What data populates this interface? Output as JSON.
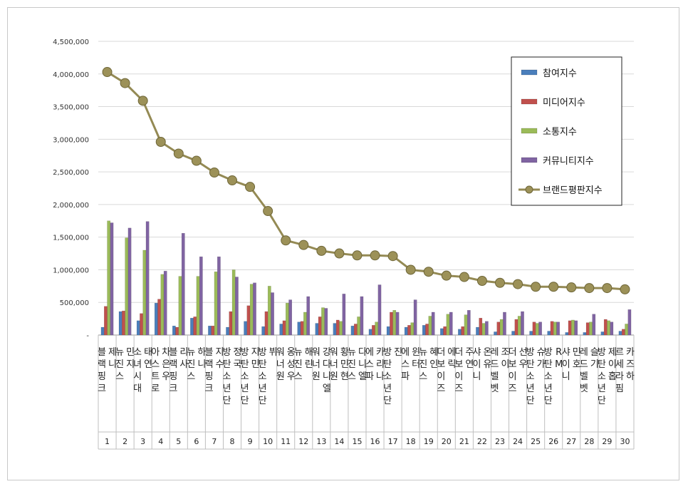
{
  "chart_data": {
    "type": "bar",
    "title": "",
    "xlabel": "",
    "ylabel": "",
    "ylim": [
      0,
      4500000
    ],
    "yticks": [
      "-",
      "500,000",
      "1,000,000",
      "1,500,000",
      "2,000,000",
      "2,500,000",
      "3,000,000",
      "3,500,000",
      "4,000,000",
      "4,500,000"
    ],
    "grid": true,
    "legend_position": "top-right",
    "ranks": [
      "1",
      "2",
      "3",
      "4",
      "5",
      "6",
      "7",
      "8",
      "9",
      "10",
      "11",
      "12",
      "13",
      "14",
      "15",
      "16",
      "17",
      "18",
      "19",
      "20",
      "21",
      "22",
      "23",
      "24",
      "25",
      "26",
      "27",
      "28",
      "29",
      "30"
    ],
    "categories": [
      "블랙핑크 제니",
      "뉴진스 민지",
      "소녀시대 태연",
      "아스트로 차은우",
      "블랙핑크 리사",
      "뉴진스 하니",
      "블랙핑크 지수",
      "방탄소년단 정국",
      "방탄소년단 지민",
      "방탄소년단 뷔",
      "워너원 옹성우",
      "뉴진스 해린",
      "워너원 강다니엘",
      "워너원 황민현",
      "뉴진스 다니엘",
      "에스파 카리나",
      "방탄소년단 진",
      "에스파 윈터",
      "뉴진스 혜인",
      "더보이즈 에릭",
      "더보이즈 주연",
      "샤이니 온유",
      "레드벨벳 조이",
      "더보이즈 선우",
      "방탄소년단 슈가",
      "방탄소년단 RM",
      "샤이니 민호",
      "레드벨벳 슬기",
      "방탄소년단 제이홉",
      "르세라핌 카즈하"
    ],
    "series": [
      {
        "name": "참여지수",
        "type": "bar",
        "color": "#4a7ebb",
        "values": [
          120000,
          360000,
          220000,
          490000,
          140000,
          260000,
          140000,
          120000,
          210000,
          130000,
          170000,
          200000,
          180000,
          180000,
          140000,
          90000,
          130000,
          120000,
          150000,
          100000,
          90000,
          120000,
          50000,
          60000,
          60000,
          60000,
          40000,
          40000,
          50000,
          60000
        ]
      },
      {
        "name": "미디어지수",
        "type": "bar",
        "color": "#c0504d",
        "values": [
          440000,
          370000,
          330000,
          550000,
          120000,
          280000,
          140000,
          360000,
          450000,
          360000,
          220000,
          210000,
          280000,
          230000,
          170000,
          150000,
          350000,
          150000,
          170000,
          130000,
          130000,
          260000,
          200000,
          240000,
          200000,
          210000,
          220000,
          190000,
          240000,
          90000
        ]
      },
      {
        "name": "소통지수",
        "type": "bar",
        "color": "#9bbb59",
        "values": [
          1750000,
          1490000,
          1300000,
          930000,
          900000,
          900000,
          970000,
          1000000,
          780000,
          750000,
          490000,
          350000,
          420000,
          210000,
          280000,
          200000,
          380000,
          190000,
          290000,
          320000,
          310000,
          180000,
          240000,
          290000,
          180000,
          200000,
          230000,
          200000,
          220000,
          170000
        ]
      },
      {
        "name": "커뮤니티지수",
        "type": "bar",
        "color": "#8064a2",
        "values": [
          1720000,
          1640000,
          1740000,
          980000,
          1560000,
          1200000,
          1200000,
          890000,
          800000,
          650000,
          540000,
          590000,
          410000,
          630000,
          590000,
          770000,
          350000,
          540000,
          350000,
          350000,
          380000,
          210000,
          350000,
          360000,
          200000,
          200000,
          220000,
          320000,
          200000,
          390000
        ]
      },
      {
        "name": "브랜드평판지수",
        "type": "line",
        "color": "#948a54",
        "values": [
          4030000,
          3860000,
          3590000,
          2960000,
          2780000,
          2670000,
          2490000,
          2370000,
          2270000,
          1900000,
          1450000,
          1380000,
          1290000,
          1250000,
          1220000,
          1220000,
          1210000,
          1000000,
          970000,
          910000,
          890000,
          830000,
          800000,
          780000,
          740000,
          740000,
          730000,
          720000,
          720000,
          700000
        ]
      }
    ]
  }
}
